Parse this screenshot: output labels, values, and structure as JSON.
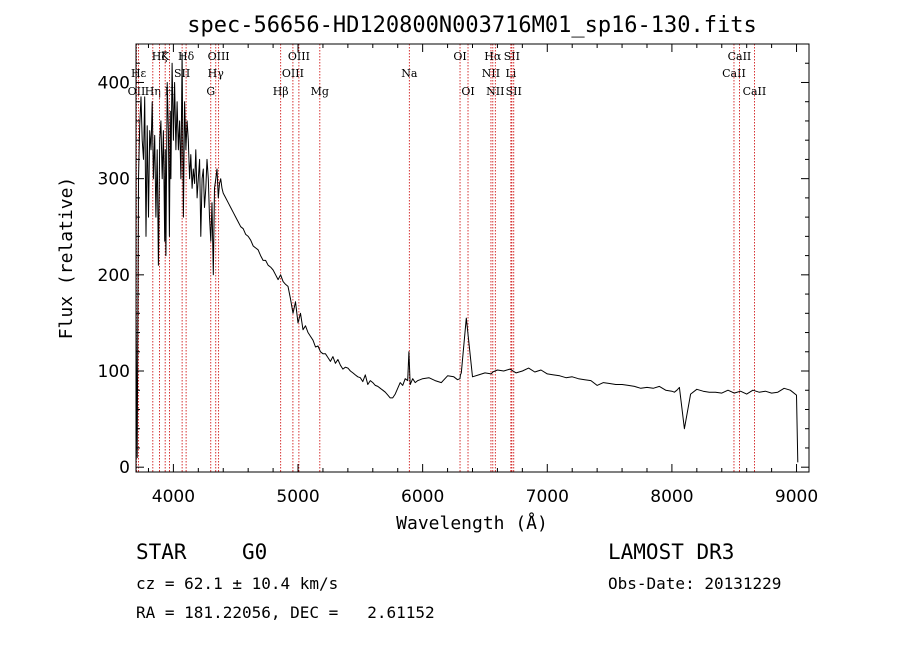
{
  "chart_data": {
    "type": "line",
    "title": "spec-56656-HD120800N003716M01_sp16-130.fits",
    "xlabel": "Wavelength (Å)",
    "ylabel": "Flux (relative)",
    "xlim": [
      3700,
      9100
    ],
    "ylim": [
      -5,
      440
    ],
    "x_ticks": [
      4000,
      5000,
      6000,
      7000,
      8000,
      9000
    ],
    "y_ticks": [
      0,
      100,
      200,
      300,
      400
    ],
    "grid": false,
    "series": [
      {
        "name": "spectrum",
        "x": [
          3700,
          3710,
          3720,
          3730,
          3740,
          3750,
          3760,
          3770,
          3780,
          3790,
          3800,
          3810,
          3820,
          3830,
          3840,
          3850,
          3860,
          3870,
          3880,
          3890,
          3900,
          3910,
          3920,
          3930,
          3935,
          3940,
          3950,
          3960,
          3968,
          3975,
          3980,
          3990,
          4000,
          4010,
          4020,
          4030,
          4040,
          4050,
          4060,
          4070,
          4080,
          4090,
          4100,
          4110,
          4120,
          4130,
          4140,
          4150,
          4160,
          4170,
          4180,
          4190,
          4200,
          4210,
          4220,
          4230,
          4240,
          4250,
          4260,
          4270,
          4280,
          4290,
          4300,
          4310,
          4320,
          4330,
          4340,
          4350,
          4360,
          4370,
          4380,
          4390,
          4400,
          4420,
          4440,
          4460,
          4480,
          4500,
          4520,
          4540,
          4560,
          4580,
          4600,
          4620,
          4640,
          4660,
          4680,
          4700,
          4720,
          4740,
          4760,
          4780,
          4800,
          4820,
          4840,
          4860,
          4880,
          4900,
          4920,
          4940,
          4960,
          4980,
          5000,
          5020,
          5040,
          5060,
          5080,
          5100,
          5120,
          5140,
          5160,
          5180,
          5200,
          5220,
          5240,
          5260,
          5280,
          5300,
          5320,
          5340,
          5360,
          5380,
          5400,
          5420,
          5440,
          5460,
          5480,
          5500,
          5520,
          5540,
          5560,
          5580,
          5600,
          5620,
          5640,
          5660,
          5680,
          5700,
          5720,
          5740,
          5760,
          5780,
          5800,
          5820,
          5840,
          5860,
          5880,
          5890,
          5900,
          5920,
          5940,
          5960,
          5980,
          6000,
          6050,
          6100,
          6150,
          6200,
          6250,
          6280,
          6300,
          6303,
          6310,
          6350,
          6400,
          6450,
          6500,
          6550,
          6563,
          6600,
          6650,
          6700,
          6750,
          6800,
          6850,
          6900,
          6950,
          7000,
          7050,
          7100,
          7150,
          7200,
          7250,
          7300,
          7350,
          7400,
          7450,
          7500,
          7550,
          7600,
          7650,
          7700,
          7750,
          7800,
          7850,
          7900,
          7950,
          8000,
          8020,
          8040,
          8060,
          8100,
          8150,
          8200,
          8250,
          8300,
          8350,
          8400,
          8450,
          8500,
          8550,
          8600,
          8650,
          8700,
          8750,
          8800,
          8850,
          8900,
          8950,
          9000,
          9010
        ],
        "values": [
          160,
          10,
          300,
          355,
          385,
          340,
          320,
          385,
          240,
          355,
          260,
          350,
          330,
          380,
          300,
          345,
          260,
          330,
          210,
          340,
          360,
          300,
          350,
          235,
          330,
          220,
          400,
          350,
          240,
          370,
          300,
          420,
          340,
          400,
          330,
          380,
          330,
          360,
          300,
          430,
          260,
          380,
          330,
          360,
          340,
          300,
          325,
          290,
          310,
          295,
          330,
          280,
          300,
          320,
          240,
          300,
          310,
          270,
          290,
          320,
          300,
          260,
          235,
          275,
          200,
          290,
          300,
          310,
          280,
          295,
          300,
          290,
          285,
          280,
          275,
          270,
          265,
          260,
          255,
          250,
          248,
          242,
          240,
          236,
          230,
          228,
          226,
          220,
          215,
          215,
          210,
          208,
          205,
          200,
          195,
          200,
          193,
          190,
          188,
          175,
          160,
          172,
          150,
          160,
          143,
          147,
          140,
          136,
          132,
          125,
          126,
          120,
          118,
          118,
          114,
          110,
          115,
          108,
          112,
          106,
          102,
          104,
          103,
          100,
          98,
          96,
          94,
          93,
          89,
          96,
          86,
          90,
          88,
          85,
          84,
          82,
          80,
          78,
          75,
          72,
          72,
          76,
          82,
          88,
          85,
          92,
          90,
          120,
          86,
          92,
          88,
          90,
          91,
          92,
          93,
          90,
          88,
          95,
          94,
          91,
          92,
          96,
          98,
          155,
          94,
          96,
          98,
          97,
          99,
          101,
          100,
          102,
          98,
          100,
          103,
          99,
          101,
          97,
          96,
          95,
          93,
          94,
          92,
          91,
          90,
          85,
          88,
          87,
          86,
          86,
          85,
          84,
          82,
          83,
          82,
          84,
          80,
          79,
          78,
          80,
          83,
          40,
          76,
          81,
          79,
          78,
          78,
          77,
          80,
          77,
          79,
          76,
          80,
          78,
          79,
          77,
          78,
          82,
          80,
          75,
          5
        ]
      }
    ],
    "line_markers": [
      {
        "x": 3704,
        "label": "OII",
        "row": 2
      },
      {
        "x": 3721,
        "label": "Hε",
        "row": 1
      },
      {
        "x": 3835,
        "label": "Hη",
        "row": 2
      },
      {
        "x": 3889,
        "label": "Hζ",
        "row": 0
      },
      {
        "x": 3934,
        "label": "K",
        "row": 0
      },
      {
        "x": 3968,
        "label": "H",
        "row": 2
      },
      {
        "x": 4070,
        "label": "SII",
        "row": 1
      },
      {
        "x": 4102,
        "label": "Hδ",
        "row": 0
      },
      {
        "x": 4300,
        "label": "G",
        "row": 2
      },
      {
        "x": 4340,
        "label": "Hγ",
        "row": 1
      },
      {
        "x": 4363,
        "label": "OIII",
        "row": 0
      },
      {
        "x": 4861,
        "label": "Hβ",
        "row": 2
      },
      {
        "x": 4959,
        "label": "OIII",
        "row": 1
      },
      {
        "x": 5007,
        "label": "OIII",
        "row": 0
      },
      {
        "x": 5175,
        "label": "Mg",
        "row": 2
      },
      {
        "x": 5893,
        "label": "Na",
        "row": 1
      },
      {
        "x": 6300,
        "label": "OI",
        "row": 0
      },
      {
        "x": 6364,
        "label": "OI",
        "row": 2
      },
      {
        "x": 6548,
        "label": "NII",
        "row": 1
      },
      {
        "x": 6563,
        "label": "Hα",
        "row": 0
      },
      {
        "x": 6583,
        "label": "NII",
        "row": 2
      },
      {
        "x": 6708,
        "label": "Li",
        "row": 1
      },
      {
        "x": 6716,
        "label": "SII",
        "row": 0
      },
      {
        "x": 6731,
        "label": "SII",
        "row": 2
      },
      {
        "x": 8498,
        "label": "CaII",
        "row": 1
      },
      {
        "x": 8542,
        "label": "CaII",
        "row": 0
      },
      {
        "x": 8662,
        "label": "CaII",
        "row": 2
      }
    ],
    "colors": {
      "spectrum": "#000000",
      "markers": "#cc0000",
      "axes": "#000000"
    }
  },
  "info": {
    "class": "STAR",
    "subclass": "G0",
    "survey": "LAMOST DR3",
    "cz": "cz = 62.1 ± 10.4 km/s",
    "obs_date": "Obs-Date: 20131229",
    "coords": "RA = 181.22056, DEC =   2.61152"
  }
}
